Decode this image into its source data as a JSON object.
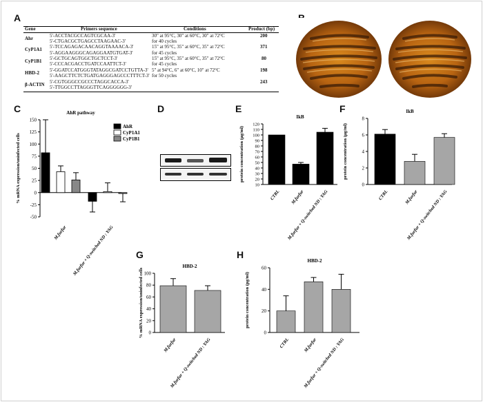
{
  "panels": {
    "A": "A",
    "B": "B",
    "C": "C",
    "D": "D",
    "E": "E",
    "F": "F",
    "G": "G",
    "H": "H"
  },
  "table": {
    "headers": {
      "gene": "Gene",
      "primers": "Primers sequence",
      "conditions": "Conditions",
      "product": "Product (bp)"
    },
    "rows": [
      {
        "gene": "Ahr",
        "primer1": "5'-ACCTACGCCAGTCGCAA-3'",
        "primer2": "5'-CTGACGCTGAGCCTAAGAAC-3'",
        "cond1": "30\" at 95°C, 30\" at 60°C, 30\" at 72°C",
        "cond2": "for 40 cycles",
        "product": "200"
      },
      {
        "gene": "CyP1A1",
        "primer1": "5'-TCCAGAGACAACAGGTAAAACA-3'",
        "primer2": "5'-AGGAAGGGCAGAGGAATGTGAT-3'",
        "cond1": "15\" at 95°C, 35\" at 60°C, 35\" at 72°C",
        "cond2": "for 45 cycles",
        "product": "371"
      },
      {
        "gene": "CyP1B1",
        "primer1": "5'-GCTGCAGTGGCTGCTCCT-3'",
        "primer2": "5'-CCCACGACCTGATCCAATTCT-3'",
        "cond1": "15\" at 95°C, 35\" at 60°C, 35\" at 72°C",
        "cond2": "for 45 cycles",
        "product": "80"
      },
      {
        "gene": "HBD-2",
        "primer1": "5'-GGATCCATGGGTATAGGCGATCCTGTTA-3'",
        "primer2": "5'-AAGCTTCTCTGATGAGGGAGCCCTTTCT-3'",
        "cond1": "5\" at 94°C, 6\" at 60°C, 10\" at 72°C",
        "cond2": "for 50 cycles",
        "product": "198"
      },
      {
        "gene": "β-ACTIN",
        "primer1": "5'-CGTGGGCCGCCCTAGGCACCA-3'",
        "primer2": "5'-TTGGCCTTAGGGTTCAGGGGGG-3'",
        "cond1": "",
        "cond2": "",
        "product": "243"
      }
    ]
  },
  "chart_data": [
    {
      "id": "C",
      "type": "bar",
      "title": "AhR pathway",
      "ylabel": "% mRNA expression/uninfected cells",
      "ylim": [
        -50,
        150
      ],
      "yticks": [
        "150",
        "125",
        "100",
        "75",
        "50",
        "25",
        "0",
        "-25",
        "-50"
      ],
      "categories": [
        "M.furfur",
        "M.furfur + Q-switched ND : YAG"
      ],
      "series": [
        {
          "name": "AhR",
          "color": "#000000",
          "values": [
            82,
            -18
          ],
          "errors": [
            68,
            22
          ]
        },
        {
          "name": "CyP1A1",
          "color": "#ffffff",
          "values": [
            43,
            2
          ],
          "errors": [
            12,
            18
          ]
        },
        {
          "name": "CyP1B1",
          "color": "#888888",
          "values": [
            26,
            -2
          ],
          "errors": [
            15,
            17
          ]
        }
      ],
      "legend": "top-right"
    },
    {
      "id": "E",
      "type": "bar",
      "title": "IkB",
      "ylabel": "protein concentration (µg/ml)",
      "ylim": [
        10,
        120
      ],
      "yticks": [
        "120",
        "110",
        "100",
        "90",
        "80",
        "70",
        "60",
        "50",
        "40",
        "30",
        "20",
        "10"
      ],
      "categories": [
        "CTRL",
        "M.furfur",
        "M.furfur + Q-switched ND : YAG"
      ],
      "values": [
        100,
        47,
        105
      ],
      "errors": [
        0,
        3,
        7
      ],
      "colors": [
        "#000000",
        "#000000",
        "#000000"
      ]
    },
    {
      "id": "F",
      "type": "bar",
      "title": "IkB",
      "ylabel": "protein concentration (µg/ml)",
      "ylim": [
        0,
        8
      ],
      "yticks": [
        "8",
        "6",
        "4",
        "2",
        "0"
      ],
      "categories": [
        "CTRL",
        "M.furfur",
        "M.furfur + Q-switched ND : YAG"
      ],
      "values": [
        6.1,
        2.8,
        5.7
      ],
      "errors": [
        0.55,
        0.85,
        0.45
      ],
      "colors": [
        "#000000",
        "#a6a6a6",
        "#a6a6a6"
      ]
    },
    {
      "id": "G",
      "type": "bar",
      "title": "HBD-2",
      "ylabel": "% mRNA expression/uninfected cells",
      "ylim": [
        0,
        100
      ],
      "yticks": [
        "100",
        "80",
        "60",
        "40",
        "20",
        "0"
      ],
      "categories": [
        "M.furfur",
        "M.furfur + Q-switched ND : YAG"
      ],
      "values": [
        79,
        71
      ],
      "errors": [
        12,
        8
      ],
      "colors": [
        "#a6a6a6",
        "#a6a6a6"
      ]
    },
    {
      "id": "H",
      "type": "bar",
      "title": "HBD-2",
      "ylabel": "protein concentration (pg/ml)",
      "ylim": [
        0,
        60
      ],
      "yticks": [
        "60",
        "40",
        "20",
        "0"
      ],
      "categories": [
        "CTRL",
        "M.furfur",
        "M.furfur + Q-switched ND : YAG"
      ],
      "values": [
        20,
        47,
        40
      ],
      "errors": [
        14,
        4,
        14
      ],
      "colors": [
        "#a6a6a6",
        "#a6a6a6",
        "#a6a6a6"
      ]
    }
  ]
}
